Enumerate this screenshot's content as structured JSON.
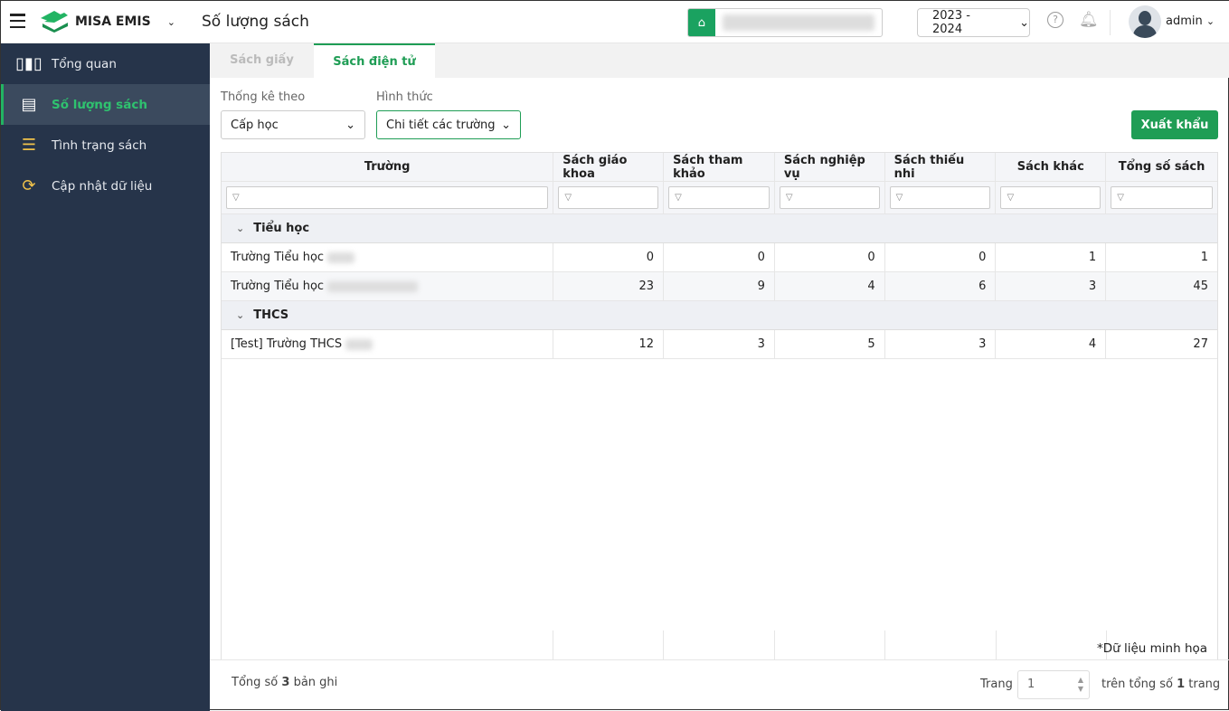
{
  "header": {
    "app_name": "MISA EMIS",
    "page_title": "Số lượng sách",
    "school_year": "2023 - 2024",
    "user": "admin",
    "help_icon": "?"
  },
  "sidebar": {
    "items": [
      {
        "label": "Tổng quan",
        "icon": "chart-icon"
      },
      {
        "label": "Số lượng sách",
        "icon": "book-icon",
        "active": true
      },
      {
        "label": "Tình trạng sách",
        "icon": "book-hand-icon"
      },
      {
        "label": "Cập nhật dữ liệu",
        "icon": "sync-icon"
      }
    ]
  },
  "tabs": [
    {
      "label": "Sách giấy"
    },
    {
      "label": "Sách điện tử",
      "active": true
    }
  ],
  "filters": {
    "stat_label": "Thống kê theo",
    "stat_value": "Cấp học",
    "form_label": "Hình thức",
    "form_value": "Chi tiết các trường"
  },
  "export_label": "Xuất khẩu",
  "table": {
    "columns": [
      "Trường",
      "Sách giáo khoa",
      "Sách tham khảo",
      "Sách nghiệp vụ",
      "Sách thiếu nhi",
      "Sách khác",
      "Tổng số sách"
    ],
    "groups": [
      {
        "name": "Tiểu học",
        "rows": [
          {
            "school": "Trường Tiểu học",
            "values": [
              "0",
              "0",
              "0",
              "0",
              "1",
              "1"
            ]
          },
          {
            "school": "Trường Tiểu học",
            "values": [
              "23",
              "9",
              "4",
              "6",
              "3",
              "45"
            ]
          }
        ]
      },
      {
        "name": "THCS",
        "rows": [
          {
            "school": "[Test] Trường THCS",
            "values": [
              "12",
              "3",
              "5",
              "3",
              "4",
              "27"
            ]
          }
        ]
      }
    ]
  },
  "note": "*Dữ liệu minh họa",
  "footer": {
    "total_prefix": "Tổng số",
    "total_count": "3",
    "total_suffix": "bản ghi",
    "page_label": "Trang",
    "page_value": "1",
    "pages_prefix": "trên tổng số",
    "pages_count": "1",
    "pages_suffix": "trang"
  },
  "colors": {
    "accent": "#1f9d55",
    "sidebar": "#26344a"
  }
}
